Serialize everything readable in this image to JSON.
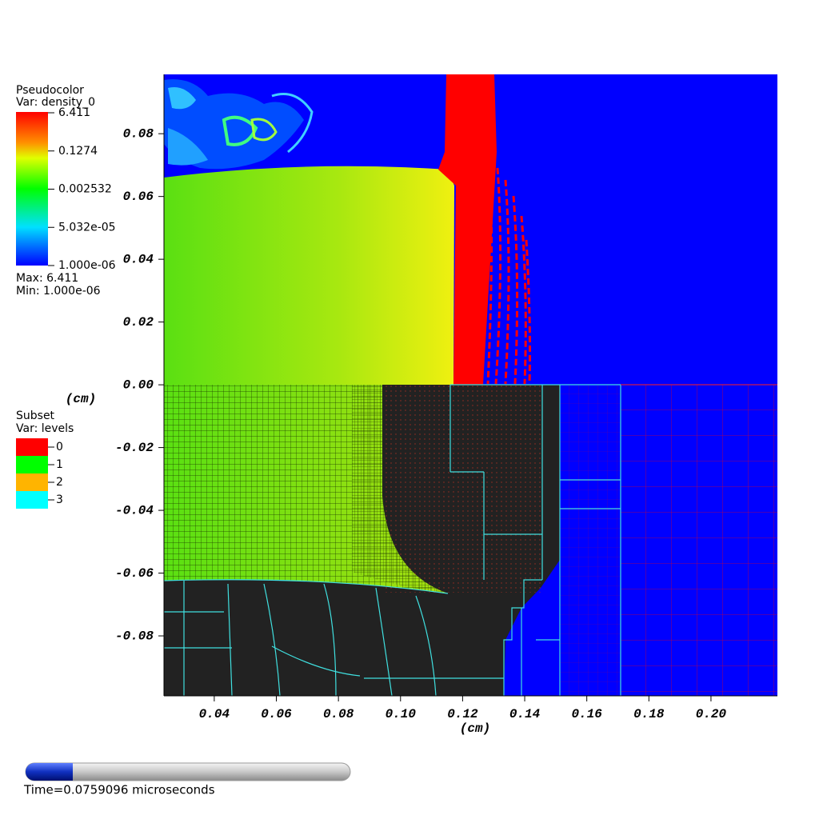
{
  "chart_data": {
    "type": "pseudocolor",
    "x_label": "(cm)",
    "y_label": "(cm)",
    "xlim": [
      0.0238,
      0.2214
    ],
    "ylim": [
      -0.0991,
      0.0989
    ],
    "xticks": [
      0.04,
      0.06,
      0.08,
      {
        "value": 0.1,
        "label": "0.10"
      },
      0.12,
      0.14,
      0.16,
      0.18,
      {
        "value": 0.2,
        "label": "0.20"
      }
    ],
    "yticks": [
      -0.08,
      -0.06,
      -0.04,
      -0.02,
      {
        "value": 0,
        "label": "0.00"
      },
      0.02,
      0.04,
      0.06,
      0.08
    ],
    "pseudocolor_legend": {
      "title": "Pseudocolor",
      "var": "Var: density_0",
      "colorbar_labels": [
        "6.411",
        "0.1274",
        "0.002532",
        "5.032e-05",
        "1.000e-06"
      ],
      "max": "Max: 6.411",
      "min": "Min:  1.000e-06"
    },
    "subset_legend": {
      "title": "Subset",
      "var": "Var: levels",
      "series": [
        {
          "name": "0",
          "color": "#ff0000"
        },
        {
          "name": "1",
          "color": "#00ff00"
        },
        {
          "name": "2",
          "color": "#ffb400"
        },
        {
          "name": "3",
          "color": "#00ffff"
        }
      ]
    },
    "time": "Time=0.0759096 microseconds"
  }
}
